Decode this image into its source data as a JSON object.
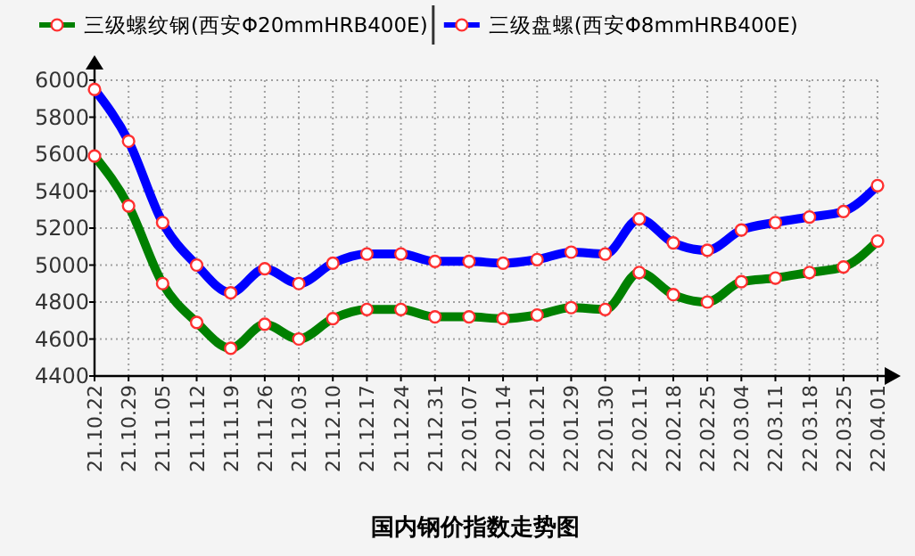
{
  "chart_data": {
    "type": "line",
    "title": "国内钢价指数走势图",
    "categories": [
      "21.10.22",
      "21.10.29",
      "21.11.05",
      "21.11.12",
      "21.11.19",
      "21.11.26",
      "21.12.03",
      "21.12.10",
      "21.12.17",
      "21.12.24",
      "21.12.31",
      "22.01.07",
      "22.01.14",
      "22.01.21",
      "22.01.29",
      "22.01.30",
      "22.02.11",
      "22.02.18",
      "22.02.25",
      "22.03.04",
      "22.03.11",
      "22.03.18",
      "22.03.25",
      "22.04.01"
    ],
    "series": [
      {
        "name": "三级螺纹钢(西安Φ20mmHRB400E)",
        "color": "#008000",
        "values": [
          5590,
          5320,
          4900,
          4690,
          4550,
          4680,
          4600,
          4710,
          4760,
          4760,
          4720,
          4720,
          4710,
          4730,
          4770,
          4760,
          4960,
          4840,
          4800,
          4910,
          4930,
          4960,
          4990,
          5130
        ]
      },
      {
        "name": "三级盘螺(西安Φ8mmHRB400E)",
        "color": "#0000ff",
        "values": [
          5950,
          5670,
          5230,
          5000,
          4850,
          4980,
          4900,
          5010,
          5060,
          5060,
          5020,
          5020,
          5010,
          5030,
          5070,
          5060,
          5250,
          5120,
          5080,
          5190,
          5230,
          5260,
          5290,
          5430
        ]
      }
    ],
    "ylim": [
      4400,
      6000
    ],
    "yticks": [
      4400,
      4600,
      4800,
      5000,
      5200,
      5400,
      5600,
      5800,
      6000
    ],
    "grid": true,
    "legend": "top",
    "marker": "circle",
    "line_style": "solid"
  }
}
